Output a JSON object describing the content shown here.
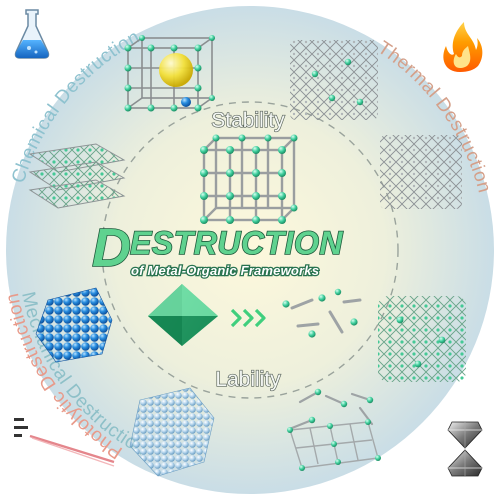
{
  "title": {
    "initial": "D",
    "rest": "ESTRUCTION",
    "subtitle": "of Metal-Organic Frameworks"
  },
  "center_words": {
    "stability": "Stability",
    "lability": "Lability"
  },
  "arc_labels": {
    "chemical": "Chemical Destruction",
    "thermal": "Thermal Destruction",
    "photolytic": "Photolytic Destruction",
    "mechanical": "Mechanical Destruction"
  },
  "icons": {
    "chemical": "flask-icon",
    "thermal": "flame-icon",
    "photolytic": "light-beam-icon",
    "mechanical": "diamond-anvil-icon"
  },
  "colors": {
    "accent_green": "#5fd28f",
    "title_stroke": "#1f5a3c",
    "node_teal": "#3fcf9d",
    "chemical_label": "#8ec2cf",
    "thermal_label": "#d4a08a",
    "photolytic_label": "#e89a8a",
    "mechanical_label": "#8ec0c8",
    "arrow_green": "#3fcf7d"
  }
}
